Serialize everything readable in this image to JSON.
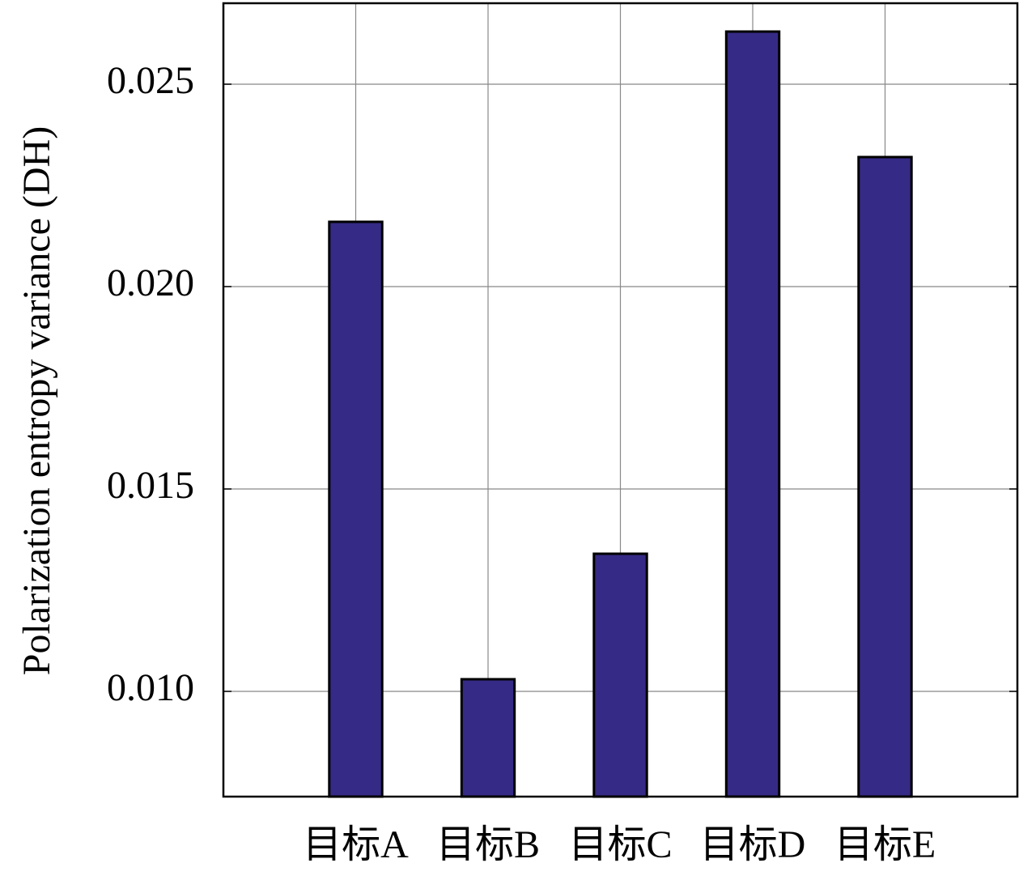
{
  "chart_data": {
    "type": "bar",
    "y_label": "Polarization entropy variance (DH)",
    "categories": [
      "目标A",
      "目标B",
      "目标C",
      "目标D",
      "目标E"
    ],
    "values": [
      0.0216,
      0.0103,
      0.0134,
      0.0263,
      0.0232
    ],
    "color": "#352a85",
    "ylim": [
      0.0074,
      0.027
    ],
    "yticks": [
      {
        "value": 0.01,
        "label": "0.010"
      },
      0.015,
      {
        "value": 0.02,
        "label": "0.020"
      },
      0.025
    ],
    "grid": true
  }
}
